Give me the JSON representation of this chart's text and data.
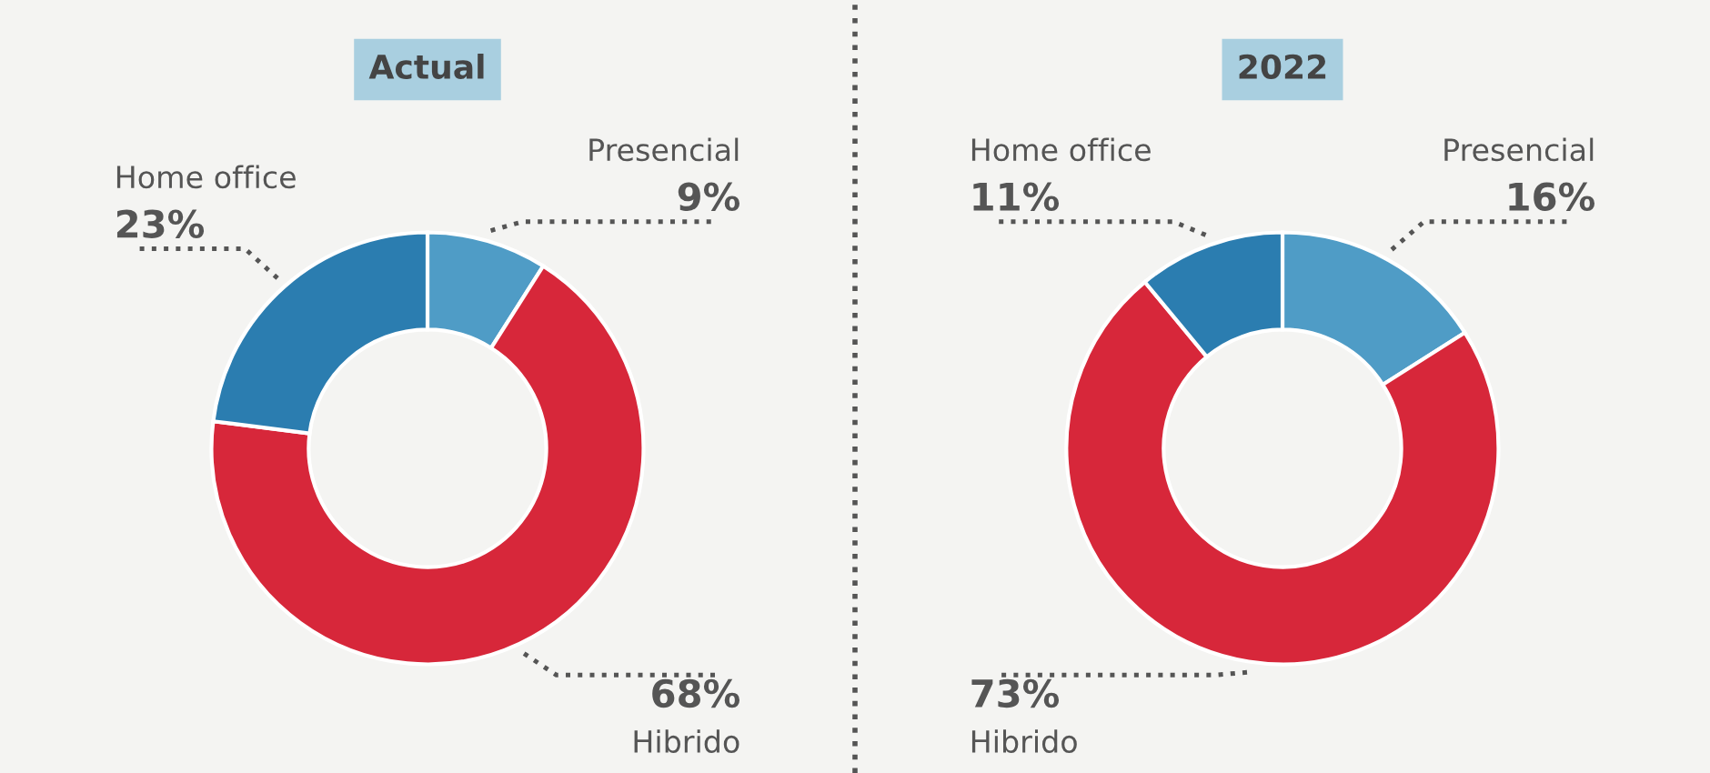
{
  "chart_data": [
    {
      "type": "donut",
      "title": "Actual",
      "categories": [
        "Presencial",
        "Hibrido",
        "Home office"
      ],
      "values": [
        9,
        68,
        23
      ],
      "value_labels": [
        "9%",
        "68%",
        "23%"
      ],
      "colors": [
        "#4f9cc6",
        "#d7273a",
        "#2b7db0"
      ]
    },
    {
      "type": "donut",
      "title": "2022",
      "categories": [
        "Presencial",
        "Hibrido",
        "Home office"
      ],
      "values": [
        16,
        73,
        11
      ],
      "value_labels": [
        "16%",
        "73%",
        "11%"
      ],
      "colors": [
        "#4f9cc6",
        "#d7273a",
        "#2b7db0"
      ]
    }
  ]
}
